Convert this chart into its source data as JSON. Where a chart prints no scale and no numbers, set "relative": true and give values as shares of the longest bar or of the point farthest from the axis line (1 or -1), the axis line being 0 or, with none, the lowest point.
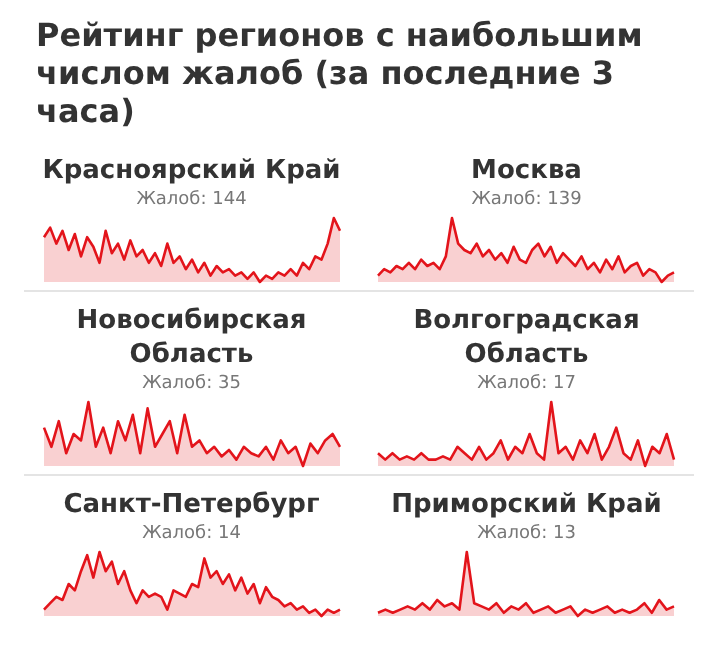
{
  "chart_data": [
    {
      "type": "other",
      "title": "Рейтинг регионов с наибольшим числом жалоб (за последние 3 часа)"
    },
    {
      "type": "area",
      "title": "Красноярский Край",
      "subtitle": "Жалоб: 144",
      "relative": true,
      "categories": [
        null,
        null,
        null,
        null,
        null,
        null,
        null,
        null,
        null,
        null,
        null,
        null,
        null,
        null,
        null,
        null,
        null,
        null,
        null,
        null,
        null,
        null,
        null,
        null,
        null,
        null,
        null,
        null,
        null,
        null,
        null,
        null,
        null,
        null,
        null,
        null,
        null,
        null,
        null,
        null,
        null,
        null,
        null,
        null,
        null,
        null,
        null,
        null,
        null
      ],
      "series": [
        {
          "color": "#e3141b",
          "values": [
            0.7,
            0.85,
            0.6,
            0.8,
            0.5,
            0.75,
            0.4,
            0.7,
            0.55,
            0.3,
            0.8,
            0.45,
            0.6,
            0.35,
            0.65,
            0.4,
            0.5,
            0.3,
            0.45,
            0.25,
            0.6,
            0.3,
            0.4,
            0.2,
            0.35,
            0.15,
            0.3,
            0.1,
            0.25,
            0.15,
            0.2,
            0.1,
            0.15,
            0.05,
            0.15,
            0,
            0.1,
            0.05,
            0.15,
            0.1,
            0.2,
            0.1,
            0.3,
            0.2,
            0.4,
            0.35,
            0.6,
            1,
            0.8
          ]
        }
      ]
    },
    {
      "type": "area",
      "title": "Москва",
      "subtitle": "Жалоб: 139",
      "relative": true,
      "categories": [
        null,
        null,
        null,
        null,
        null,
        null,
        null,
        null,
        null,
        null,
        null,
        null,
        null,
        null,
        null,
        null,
        null,
        null,
        null,
        null,
        null,
        null,
        null,
        null,
        null,
        null,
        null,
        null,
        null,
        null,
        null,
        null,
        null,
        null,
        null,
        null,
        null,
        null,
        null,
        null,
        null,
        null,
        null,
        null,
        null,
        null,
        null,
        null,
        null
      ],
      "series": [
        {
          "color": "#e3141b",
          "values": [
            0.1,
            0.2,
            0.15,
            0.25,
            0.2,
            0.3,
            0.2,
            0.35,
            0.25,
            0.3,
            0.2,
            0.4,
            1,
            0.6,
            0.5,
            0.45,
            0.6,
            0.4,
            0.5,
            0.35,
            0.45,
            0.3,
            0.55,
            0.35,
            0.3,
            0.5,
            0.6,
            0.4,
            0.55,
            0.3,
            0.45,
            0.35,
            0.25,
            0.4,
            0.2,
            0.3,
            0.15,
            0.35,
            0.2,
            0.4,
            0.15,
            0.25,
            0.3,
            0.1,
            0.2,
            0.15,
            0,
            0.1,
            0.15
          ]
        }
      ]
    },
    {
      "type": "area",
      "title": "Новосибирская Область",
      "subtitle": "Жалоб: 35",
      "relative": true,
      "categories": [
        null,
        null,
        null,
        null,
        null,
        null,
        null,
        null,
        null,
        null,
        null,
        null,
        null,
        null,
        null,
        null,
        null,
        null,
        null,
        null,
        null,
        null,
        null,
        null,
        null,
        null,
        null,
        null,
        null,
        null,
        null,
        null,
        null,
        null,
        null,
        null,
        null,
        null,
        null,
        null,
        null
      ],
      "series": [
        {
          "color": "#e3141b",
          "values": [
            0.6,
            0.3,
            0.7,
            0.2,
            0.5,
            0.4,
            1,
            0.3,
            0.6,
            0.2,
            0.7,
            0.4,
            0.8,
            0.2,
            0.9,
            0.3,
            0.5,
            0.7,
            0.2,
            0.8,
            0.3,
            0.4,
            0.2,
            0.3,
            0.15,
            0.25,
            0.1,
            0.3,
            0.2,
            0.15,
            0.3,
            0.1,
            0.4,
            0.2,
            0.3,
            0,
            0.35,
            0.2,
            0.4,
            0.5,
            0.3
          ]
        }
      ]
    },
    {
      "type": "area",
      "title": "Волгоградская Область",
      "subtitle": "Жалоб: 17",
      "relative": true,
      "categories": [
        null,
        null,
        null,
        null,
        null,
        null,
        null,
        null,
        null,
        null,
        null,
        null,
        null,
        null,
        null,
        null,
        null,
        null,
        null,
        null,
        null,
        null,
        null,
        null,
        null,
        null,
        null,
        null,
        null,
        null,
        null,
        null,
        null,
        null,
        null,
        null,
        null,
        null,
        null,
        null,
        null,
        null
      ],
      "series": [
        {
          "color": "#e3141b",
          "values": [
            0.2,
            0.1,
            0.2,
            0.1,
            0.15,
            0.1,
            0.2,
            0.1,
            0.1,
            0.15,
            0.1,
            0.3,
            0.2,
            0.1,
            0.3,
            0.1,
            0.2,
            0.4,
            0.1,
            0.3,
            0.2,
            0.5,
            0.2,
            0.1,
            1,
            0.2,
            0.3,
            0.1,
            0.4,
            0.2,
            0.5,
            0.1,
            0.3,
            0.6,
            0.2,
            0.1,
            0.4,
            0,
            0.3,
            0.2,
            0.5,
            0.1
          ]
        }
      ]
    },
    {
      "type": "area",
      "title": "Санкт-Петербург",
      "subtitle": "Жалоб: 14",
      "relative": true,
      "categories": [
        null,
        null,
        null,
        null,
        null,
        null,
        null,
        null,
        null,
        null,
        null,
        null,
        null,
        null,
        null,
        null,
        null,
        null,
        null,
        null,
        null,
        null,
        null,
        null,
        null,
        null,
        null,
        null,
        null,
        null,
        null,
        null,
        null,
        null,
        null,
        null,
        null,
        null,
        null,
        null,
        null,
        null,
        null,
        null,
        null,
        null,
        null,
        null,
        null
      ],
      "series": [
        {
          "color": "#e3141b",
          "values": [
            0.1,
            0.2,
            0.3,
            0.25,
            0.5,
            0.4,
            0.7,
            0.95,
            0.6,
            1,
            0.7,
            0.85,
            0.5,
            0.7,
            0.4,
            0.2,
            0.4,
            0.3,
            0.35,
            0.3,
            0.1,
            0.4,
            0.35,
            0.3,
            0.5,
            0.45,
            0.9,
            0.6,
            0.7,
            0.5,
            0.65,
            0.4,
            0.6,
            0.35,
            0.5,
            0.2,
            0.45,
            0.3,
            0.25,
            0.15,
            0.2,
            0.1,
            0.15,
            0.05,
            0.1,
            0,
            0.1,
            0.05,
            0.1
          ]
        }
      ]
    },
    {
      "type": "area",
      "title": "Приморский Край",
      "subtitle": "Жалоб: 13",
      "relative": true,
      "categories": [
        null,
        null,
        null,
        null,
        null,
        null,
        null,
        null,
        null,
        null,
        null,
        null,
        null,
        null,
        null,
        null,
        null,
        null,
        null,
        null,
        null,
        null,
        null,
        null,
        null,
        null,
        null,
        null,
        null,
        null,
        null,
        null,
        null,
        null,
        null,
        null,
        null,
        null,
        null,
        null,
        null
      ],
      "series": [
        {
          "color": "#e3141b",
          "values": [
            0.05,
            0.1,
            0.05,
            0.1,
            0.15,
            0.1,
            0.2,
            0.1,
            0.25,
            0.15,
            0.2,
            0.1,
            1,
            0.2,
            0.15,
            0.1,
            0.2,
            0.05,
            0.15,
            0.1,
            0.2,
            0.05,
            0.1,
            0.15,
            0.05,
            0.1,
            0.15,
            0,
            0.1,
            0.05,
            0.1,
            0.15,
            0.05,
            0.1,
            0.05,
            0.1,
            0.2,
            0.05,
            0.25,
            0.1,
            0.15
          ]
        }
      ]
    }
  ]
}
